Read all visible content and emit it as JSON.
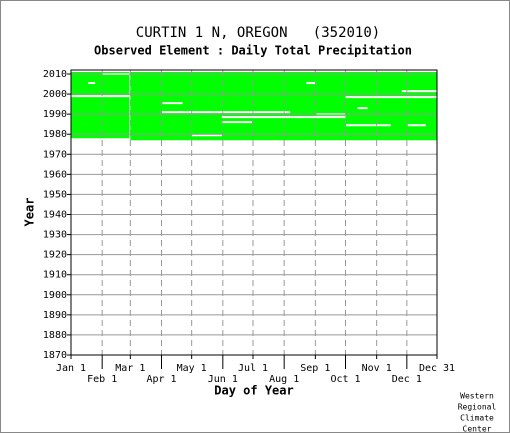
{
  "chart_data": {
    "type": "coverage",
    "title": "CURTIN 1 N, OREGON   (352010)",
    "subtitle": "Observed Element : Daily Total Precipitation",
    "x_label": "Day of Year",
    "y_label": "Year",
    "credit": [
      "Western",
      "Regional",
      "Climate",
      "Center"
    ],
    "color": "#00ff00",
    "gap_color": "#ffffff",
    "xlim": [
      1,
      365
    ],
    "ylim": [
      1870,
      2012
    ],
    "xticks": [
      {
        "value": 1,
        "label": "Jan 1"
      },
      {
        "value": 32,
        "label": "Feb 1"
      },
      {
        "value": 60,
        "label": "Mar 1"
      },
      {
        "value": 91,
        "label": "Apr 1"
      },
      {
        "value": 121,
        "label": "May 1"
      },
      {
        "value": 152,
        "label": "Jun 1"
      },
      {
        "value": 182,
        "label": "Jul 1"
      },
      {
        "value": 213,
        "label": "Aug 1"
      },
      {
        "value": 244,
        "label": "Sep 1"
      },
      {
        "value": 274,
        "label": "Oct 1"
      },
      {
        "value": 305,
        "label": "Nov 1"
      },
      {
        "value": 335,
        "label": "Dec 1"
      },
      {
        "value": 365,
        "label": "Dec 31"
      }
    ],
    "yticks": [
      1870,
      1880,
      1890,
      1900,
      1910,
      1920,
      1930,
      1940,
      1950,
      1960,
      1970,
      1980,
      1990,
      2000,
      2010
    ],
    "blocks": [
      {
        "days": [
          1,
          59
        ],
        "years": [
          1978,
          2011
        ]
      },
      {
        "days": [
          60,
          365
        ],
        "years": [
          1977,
          2011
        ]
      }
    ],
    "gaps": [
      {
        "days": [
          32,
          59
        ],
        "year": 2010
      },
      {
        "days": [
          18,
          25
        ],
        "year": 2005.5
      },
      {
        "days": [
          235,
          244
        ],
        "year": 2005.5
      },
      {
        "days": [
          1,
          60
        ],
        "year": 1999
      },
      {
        "days": [
          274,
          365
        ],
        "year": 1998.5
      },
      {
        "days": [
          330,
          365
        ],
        "year": 2001.5
      },
      {
        "days": [
          92,
          112
        ],
        "year": 1995.5
      },
      {
        "days": [
          286,
          296
        ],
        "year": 1993
      },
      {
        "days": [
          91,
          219
        ],
        "year": 1991
      },
      {
        "days": [
          245,
          274
        ],
        "year": 1990
      },
      {
        "days": [
          151,
          274
        ],
        "year": 1988.5
      },
      {
        "days": [
          151,
          181
        ],
        "year": 1986
      },
      {
        "days": [
          274,
          319
        ],
        "year": 1984.5
      },
      {
        "days": [
          336,
          354
        ],
        "year": 1984.5
      },
      {
        "days": [
          121,
          151
        ],
        "year": 1979.5
      }
    ],
    "grid": true
  }
}
